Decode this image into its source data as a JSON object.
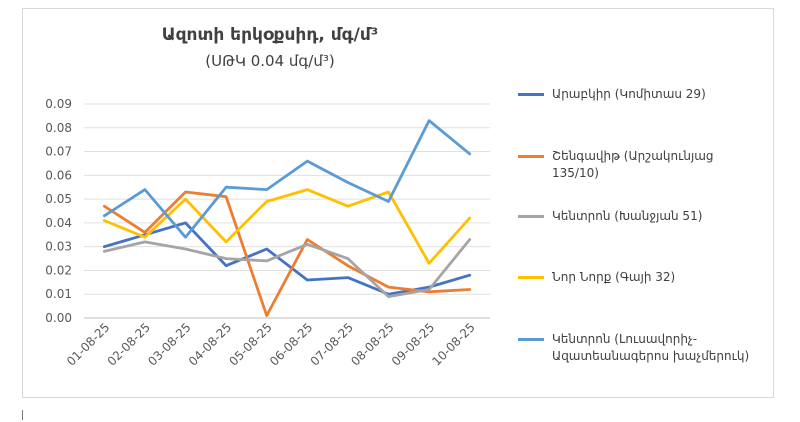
{
  "chart_data": {
    "type": "line",
    "title": "Ազոտի երկօքսիդ, մգ/մ³",
    "subtitle": "(ՍԹԿ 0.04 մգ/մ³)",
    "categories": [
      "01-08-25",
      "02-08-25",
      "03-08-25",
      "04-08-25",
      "05-08-25",
      "06-08-25",
      "07-08-25",
      "08-08-25",
      "09-08-25",
      "10-08-25"
    ],
    "ylim": [
      0,
      0.09
    ],
    "yticks": [
      "0.00",
      "0.01",
      "0.02",
      "0.03",
      "0.04",
      "0.05",
      "0.06",
      "0.07",
      "0.08",
      "0.09"
    ],
    "grid": true,
    "legend_position": "right",
    "series": [
      {
        "name": "Արաբկիր (Կոմիտաս 29)",
        "color": "#4472c4",
        "values": [
          0.03,
          0.035,
          0.04,
          0.022,
          0.029,
          0.016,
          0.017,
          0.01,
          0.013,
          0.018
        ]
      },
      {
        "name": "Շենգավիթ (Արշակունյաց 135/10)",
        "color": "#ed7d31",
        "values": [
          0.047,
          0.036,
          0.053,
          0.051,
          0.001,
          0.033,
          0.022,
          0.013,
          0.011,
          0.012
        ]
      },
      {
        "name": "Կենտրոն (Խանջյան 51)",
        "color": "#a5a5a5",
        "values": [
          0.028,
          0.032,
          0.029,
          0.025,
          0.024,
          0.031,
          0.025,
          0.009,
          0.012,
          0.033
        ]
      },
      {
        "name": "Նոր Նորք (Գայի 32)",
        "color": "#ffc000",
        "values": [
          0.041,
          0.034,
          0.05,
          0.032,
          0.049,
          0.054,
          0.047,
          0.053,
          0.023,
          0.042
        ]
      },
      {
        "name": "Կենտրոն (Լուսավորիչ-Ազատեանագերոս խաչմերուկ)",
        "color": "#5b9bd5",
        "values": [
          0.043,
          0.054,
          0.034,
          0.055,
          0.054,
          0.066,
          0.057,
          0.049,
          0.083,
          0.069
        ]
      }
    ]
  }
}
